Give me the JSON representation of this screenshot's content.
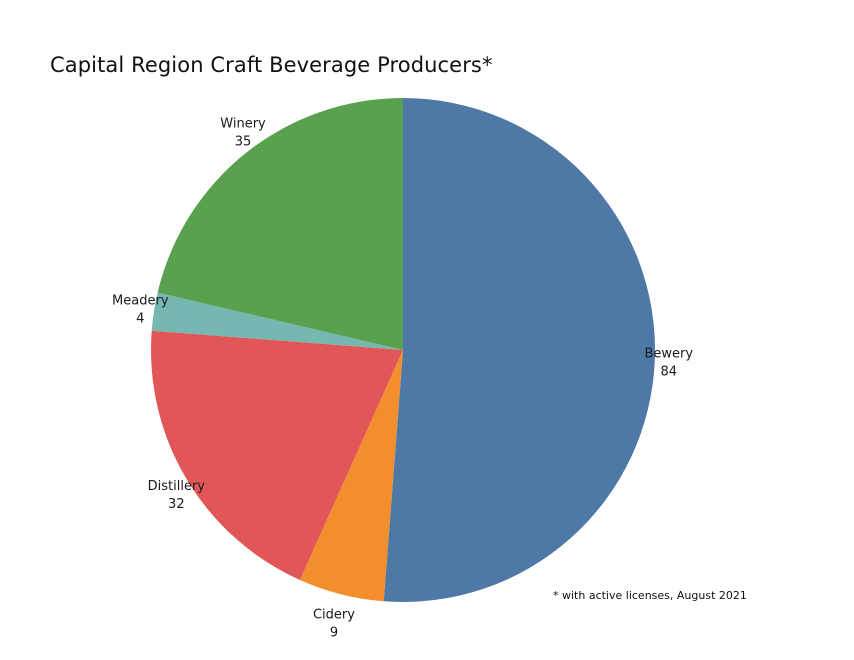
{
  "chart_data": {
    "type": "pie",
    "title": "Capital Region Craft Beverage Producers*",
    "footnote": "* with active licenses, August 2021",
    "slices": [
      {
        "label": "Bewery",
        "value": 84,
        "color": "#4e79a7"
      },
      {
        "label": "Cidery",
        "value": 9,
        "color": "#f28e2b"
      },
      {
        "label": "Distillery",
        "value": 32,
        "color": "#e15759"
      },
      {
        "label": "Meadery",
        "value": 4,
        "color": "#76b7b2"
      },
      {
        "label": "Winery",
        "value": 35,
        "color": "#59a14f"
      }
    ],
    "start_angle": "12 o'clock",
    "direction": "clockwise"
  }
}
